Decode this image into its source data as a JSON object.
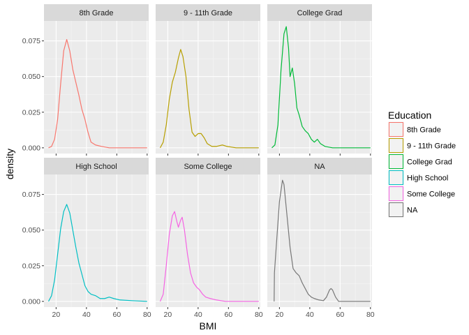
{
  "chart_data": {
    "type": "line",
    "subtype": "density-facets",
    "title": "",
    "xlabel": "BMI",
    "ylabel": "density",
    "xlim": [
      12,
      81
    ],
    "ylim": [
      -0.004,
      0.089
    ],
    "xticks": [
      20,
      40,
      60,
      80
    ],
    "xtick_labels": [
      "20",
      "40",
      "60",
      "80"
    ],
    "yticks": [
      0,
      0.025,
      0.05,
      0.075
    ],
    "ytick_labels": [
      "0.000",
      "0.025",
      "0.050",
      "0.075"
    ],
    "grid": true,
    "legend": {
      "title": "Education",
      "placement": "right",
      "entries": [
        "8th Grade",
        "9 - 11th Grade",
        "College Grad",
        "High School",
        "Some College",
        "NA"
      ]
    },
    "facets": [
      {
        "label": "8th Grade",
        "color": "#F8766D",
        "points": [
          [
            15,
            0
          ],
          [
            17,
            0.001
          ],
          [
            19,
            0.006
          ],
          [
            21,
            0.02
          ],
          [
            23,
            0.045
          ],
          [
            25,
            0.068
          ],
          [
            27,
            0.076
          ],
          [
            29,
            0.068
          ],
          [
            31,
            0.055
          ],
          [
            33,
            0.046
          ],
          [
            35,
            0.037
          ],
          [
            37,
            0.027
          ],
          [
            39,
            0.02
          ],
          [
            41,
            0.011
          ],
          [
            43,
            0.004
          ],
          [
            46,
            0.002
          ],
          [
            50,
            0.001
          ],
          [
            55,
            0
          ],
          [
            65,
            0
          ],
          [
            80,
            0
          ]
        ]
      },
      {
        "label": "9 - 11th Grade",
        "color": "#B79F00",
        "points": [
          [
            15,
            0
          ],
          [
            17,
            0.004
          ],
          [
            19,
            0.016
          ],
          [
            21,
            0.034
          ],
          [
            23,
            0.046
          ],
          [
            25,
            0.053
          ],
          [
            27,
            0.063
          ],
          [
            28.5,
            0.069
          ],
          [
            30,
            0.064
          ],
          [
            32,
            0.05
          ],
          [
            34,
            0.027
          ],
          [
            36,
            0.011
          ],
          [
            38,
            0.008
          ],
          [
            40,
            0.01
          ],
          [
            42,
            0.01
          ],
          [
            44,
            0.007
          ],
          [
            46,
            0.003
          ],
          [
            49,
            0.001
          ],
          [
            52,
            0.001
          ],
          [
            56,
            0.002
          ],
          [
            59,
            0.001
          ],
          [
            65,
            0
          ],
          [
            80,
            0
          ]
        ]
      },
      {
        "label": "College Grad",
        "color": "#00BA38",
        "points": [
          [
            15,
            0
          ],
          [
            17,
            0.002
          ],
          [
            19,
            0.016
          ],
          [
            21,
            0.054
          ],
          [
            23,
            0.08
          ],
          [
            24.5,
            0.085
          ],
          [
            26,
            0.07
          ],
          [
            27,
            0.05
          ],
          [
            28.5,
            0.056
          ],
          [
            30,
            0.045
          ],
          [
            31.5,
            0.028
          ],
          [
            33,
            0.023
          ],
          [
            35,
            0.015
          ],
          [
            37,
            0.012
          ],
          [
            39,
            0.01
          ],
          [
            41,
            0.006
          ],
          [
            43,
            0.004
          ],
          [
            45,
            0.006
          ],
          [
            47,
            0.003
          ],
          [
            50,
            0.001
          ],
          [
            55,
            0
          ],
          [
            65,
            0
          ],
          [
            80,
            0
          ]
        ]
      },
      {
        "label": "High School",
        "color": "#00BFC4",
        "points": [
          [
            15,
            0
          ],
          [
            17,
            0.004
          ],
          [
            19,
            0.015
          ],
          [
            21,
            0.033
          ],
          [
            23,
            0.051
          ],
          [
            25,
            0.063
          ],
          [
            27,
            0.068
          ],
          [
            29,
            0.062
          ],
          [
            31,
            0.05
          ],
          [
            33,
            0.038
          ],
          [
            35,
            0.027
          ],
          [
            37,
            0.019
          ],
          [
            39,
            0.011
          ],
          [
            41,
            0.007
          ],
          [
            43,
            0.005
          ],
          [
            46,
            0.004
          ],
          [
            49,
            0.002
          ],
          [
            52,
            0.002
          ],
          [
            55,
            0.003
          ],
          [
            58,
            0.002
          ],
          [
            62,
            0.001
          ],
          [
            70,
            0.0005
          ],
          [
            80,
            0
          ]
        ]
      },
      {
        "label": "Some College",
        "color": "#F564E3",
        "points": [
          [
            15,
            0
          ],
          [
            17,
            0.005
          ],
          [
            19,
            0.025
          ],
          [
            21,
            0.047
          ],
          [
            23,
            0.06
          ],
          [
            24.5,
            0.063
          ],
          [
            26,
            0.056
          ],
          [
            27,
            0.052
          ],
          [
            28.5,
            0.057
          ],
          [
            29.5,
            0.059
          ],
          [
            31,
            0.05
          ],
          [
            33,
            0.033
          ],
          [
            35,
            0.02
          ],
          [
            37,
            0.013
          ],
          [
            39,
            0.01
          ],
          [
            41,
            0.008
          ],
          [
            43,
            0.005
          ],
          [
            45,
            0.003
          ],
          [
            48,
            0.002
          ],
          [
            52,
            0.001
          ],
          [
            58,
            0
          ],
          [
            65,
            0
          ],
          [
            80,
            0
          ]
        ]
      },
      {
        "label": "NA",
        "color": "#777777",
        "points": [
          [
            16.5,
            0
          ],
          [
            16.7,
            0.02
          ],
          [
            18,
            0.04
          ],
          [
            20,
            0.07
          ],
          [
            22,
            0.085
          ],
          [
            23,
            0.082
          ],
          [
            25,
            0.06
          ],
          [
            27,
            0.038
          ],
          [
            29,
            0.023
          ],
          [
            31,
            0.02
          ],
          [
            33,
            0.018
          ],
          [
            35,
            0.013
          ],
          [
            37,
            0.009
          ],
          [
            39,
            0.005
          ],
          [
            41,
            0.003
          ],
          [
            43,
            0.002
          ],
          [
            46,
            0.001
          ],
          [
            49,
            0.0005
          ],
          [
            51,
            0.003
          ],
          [
            53,
            0.008
          ],
          [
            54,
            0.009
          ],
          [
            55,
            0.008
          ],
          [
            57,
            0.003
          ],
          [
            59,
            0
          ],
          [
            65,
            0
          ],
          [
            80,
            0
          ]
        ]
      }
    ]
  }
}
